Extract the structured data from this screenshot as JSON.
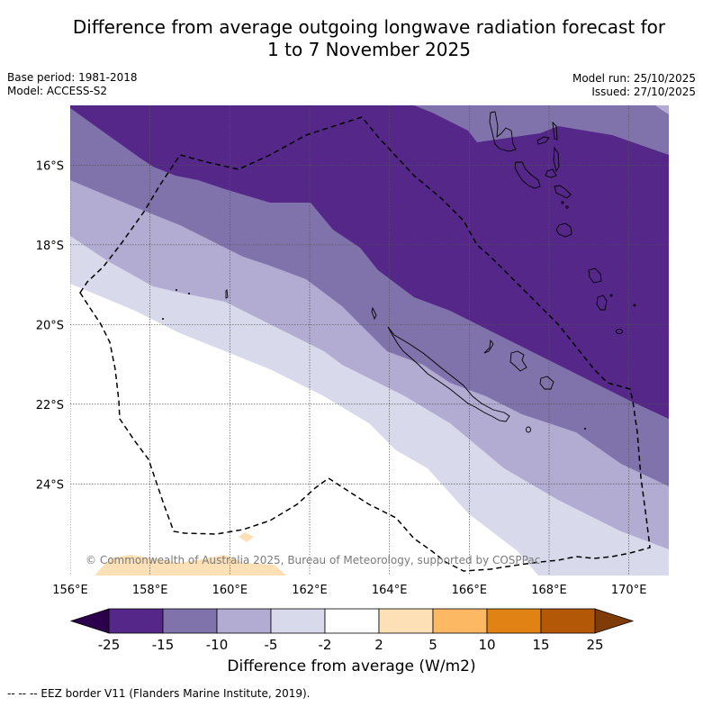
{
  "header": {
    "title_line1": "Difference from average outgoing longwave radiation forecast for",
    "title_line2": "1 to 7 November 2025",
    "base_period": "Base period: 1981-2018",
    "model": "Model: ACCESS-S2",
    "model_run": "Model run: 25/10/2025",
    "issued": "Issued: 27/10/2025"
  },
  "map": {
    "lon_range": [
      156.0,
      171.0
    ],
    "lat_range": [
      -26.3,
      -14.5
    ],
    "lon_ticks": [
      156,
      158,
      160,
      162,
      164,
      166,
      168,
      170
    ],
    "lon_tick_labels": [
      "156°E",
      "158°E",
      "160°E",
      "162°E",
      "164°E",
      "166°E",
      "168°E",
      "170°E"
    ],
    "lat_ticks": [
      -16,
      -18,
      -20,
      -22,
      -24
    ],
    "lat_tick_labels": [
      "16°S",
      "18°S",
      "20°S",
      "22°S",
      "24°S"
    ],
    "gridlines": true,
    "copyright": "© Commonwealth of Australia 2025, Bureau of Meteorology, supported by COSPPac",
    "bands": [
      {
        "class": "-25 to -15",
        "color": "#542788"
      },
      {
        "class": "-15 to -10",
        "color": "#8073ac"
      },
      {
        "class": "-10 to -5",
        "color": "#b2abd2"
      },
      {
        "class": "-5 to -2",
        "color": "#d8daeb"
      },
      {
        "class": "-2 to 2",
        "color": "#ffffff"
      },
      {
        "class": "2 to 5",
        "color": "#fee0b6"
      }
    ]
  },
  "colorbar": {
    "label": "Difference from average (W/m2)",
    "tick_labels": [
      "-25",
      "-15",
      "-10",
      "-5",
      "-2",
      "2",
      "5",
      "10",
      "15",
      "25"
    ],
    "under_color": "#2d004b",
    "over_color": "#7f3b08",
    "colors": [
      "#542788",
      "#8073ac",
      "#b2abd2",
      "#d8daeb",
      "#ffffff",
      "#fee0b6",
      "#fdb863",
      "#e08214",
      "#b35806"
    ]
  },
  "footer": {
    "eez_note": "--  --  -- EEZ border V11 (Flanders Marine Institute, 2019)."
  }
}
